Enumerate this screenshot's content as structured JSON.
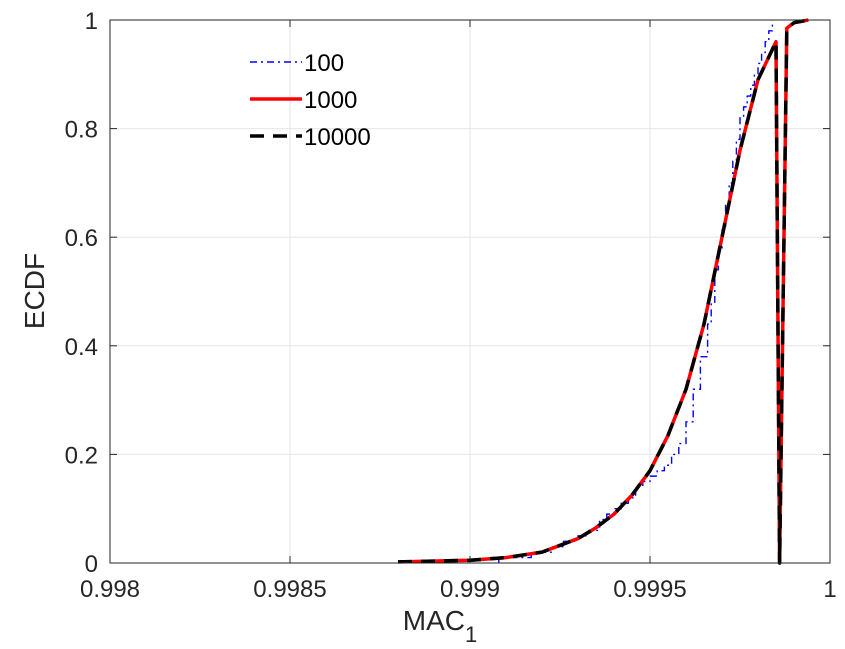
{
  "chart_data": {
    "type": "line",
    "title": "",
    "xlabel": "MAC",
    "xlabel_subscript": "1",
    "ylabel": "ECDF",
    "xlim": [
      0.998,
      1
    ],
    "ylim": [
      0,
      1
    ],
    "xticks": [
      0.998,
      0.9985,
      0.999,
      0.9995,
      1
    ],
    "xtick_labels": [
      "0.998",
      "0.9985",
      "0.999",
      "0.9995",
      "1"
    ],
    "yticks": [
      0,
      0.2,
      0.4,
      0.6,
      0.8,
      1
    ],
    "ytick_labels": [
      "0",
      "0.2",
      "0.4",
      "0.6",
      "0.8",
      "1"
    ],
    "grid": true,
    "legend_position": "top-left",
    "series": [
      {
        "name": "100",
        "color": "#0000ff",
        "style": "dash-dot",
        "step": true,
        "x": [
          0.99908,
          0.99912,
          0.99917,
          0.9992,
          0.99923,
          0.99926,
          0.9993,
          0.99933,
          0.99936,
          0.99938,
          0.9994,
          0.99942,
          0.99944,
          0.99946,
          0.99948,
          0.9995,
          0.99952,
          0.99954,
          0.99956,
          0.99958,
          0.9996,
          0.99962,
          0.99964,
          0.99966,
          0.99967,
          0.99968,
          0.99969,
          0.9997,
          0.99971,
          0.99972,
          0.99973,
          0.99974,
          0.99975,
          0.99976,
          0.99977,
          0.99978,
          0.99979,
          0.9998,
          0.99981,
          0.99982,
          0.99983,
          0.99984
        ],
        "y": [
          0.01,
          0.01,
          0.02,
          0.02,
          0.03,
          0.04,
          0.05,
          0.06,
          0.08,
          0.09,
          0.1,
          0.11,
          0.12,
          0.14,
          0.15,
          0.16,
          0.17,
          0.18,
          0.2,
          0.22,
          0.26,
          0.32,
          0.38,
          0.44,
          0.48,
          0.54,
          0.58,
          0.62,
          0.66,
          0.7,
          0.74,
          0.78,
          0.82,
          0.84,
          0.86,
          0.88,
          0.9,
          0.92,
          0.94,
          0.96,
          0.98,
          1.0
        ]
      },
      {
        "name": "1000",
        "color": "#ff0000",
        "style": "solid",
        "step": false,
        "x": [
          0.99986,
          0.9988,
          0.999,
          0.9991,
          0.9992,
          0.9993,
          0.99935,
          0.9994,
          0.99945,
          0.9995,
          0.99955,
          0.9996,
          0.99965,
          0.9997,
          0.99975,
          0.9998,
          0.99985,
          0.99988,
          0.9999,
          0.99994
        ],
        "y": [
          0.0,
          0.002,
          0.005,
          0.01,
          0.02,
          0.045,
          0.065,
          0.09,
          0.125,
          0.17,
          0.235,
          0.32,
          0.44,
          0.6,
          0.76,
          0.89,
          0.96,
          0.985,
          0.995,
          1.0
        ]
      },
      {
        "name": "10000",
        "color": "#000000",
        "style": "dashed",
        "step": false,
        "x": [
          0.99986,
          0.9988,
          0.999,
          0.9991,
          0.9992,
          0.9993,
          0.99935,
          0.9994,
          0.99945,
          0.9995,
          0.99955,
          0.9996,
          0.99965,
          0.9997,
          0.99975,
          0.9998,
          0.99985,
          0.99988,
          0.9999,
          0.99994
        ],
        "y": [
          0.0,
          0.002,
          0.005,
          0.01,
          0.02,
          0.045,
          0.065,
          0.09,
          0.125,
          0.17,
          0.235,
          0.32,
          0.44,
          0.6,
          0.76,
          0.89,
          0.96,
          0.985,
          0.995,
          1.0
        ]
      }
    ]
  }
}
